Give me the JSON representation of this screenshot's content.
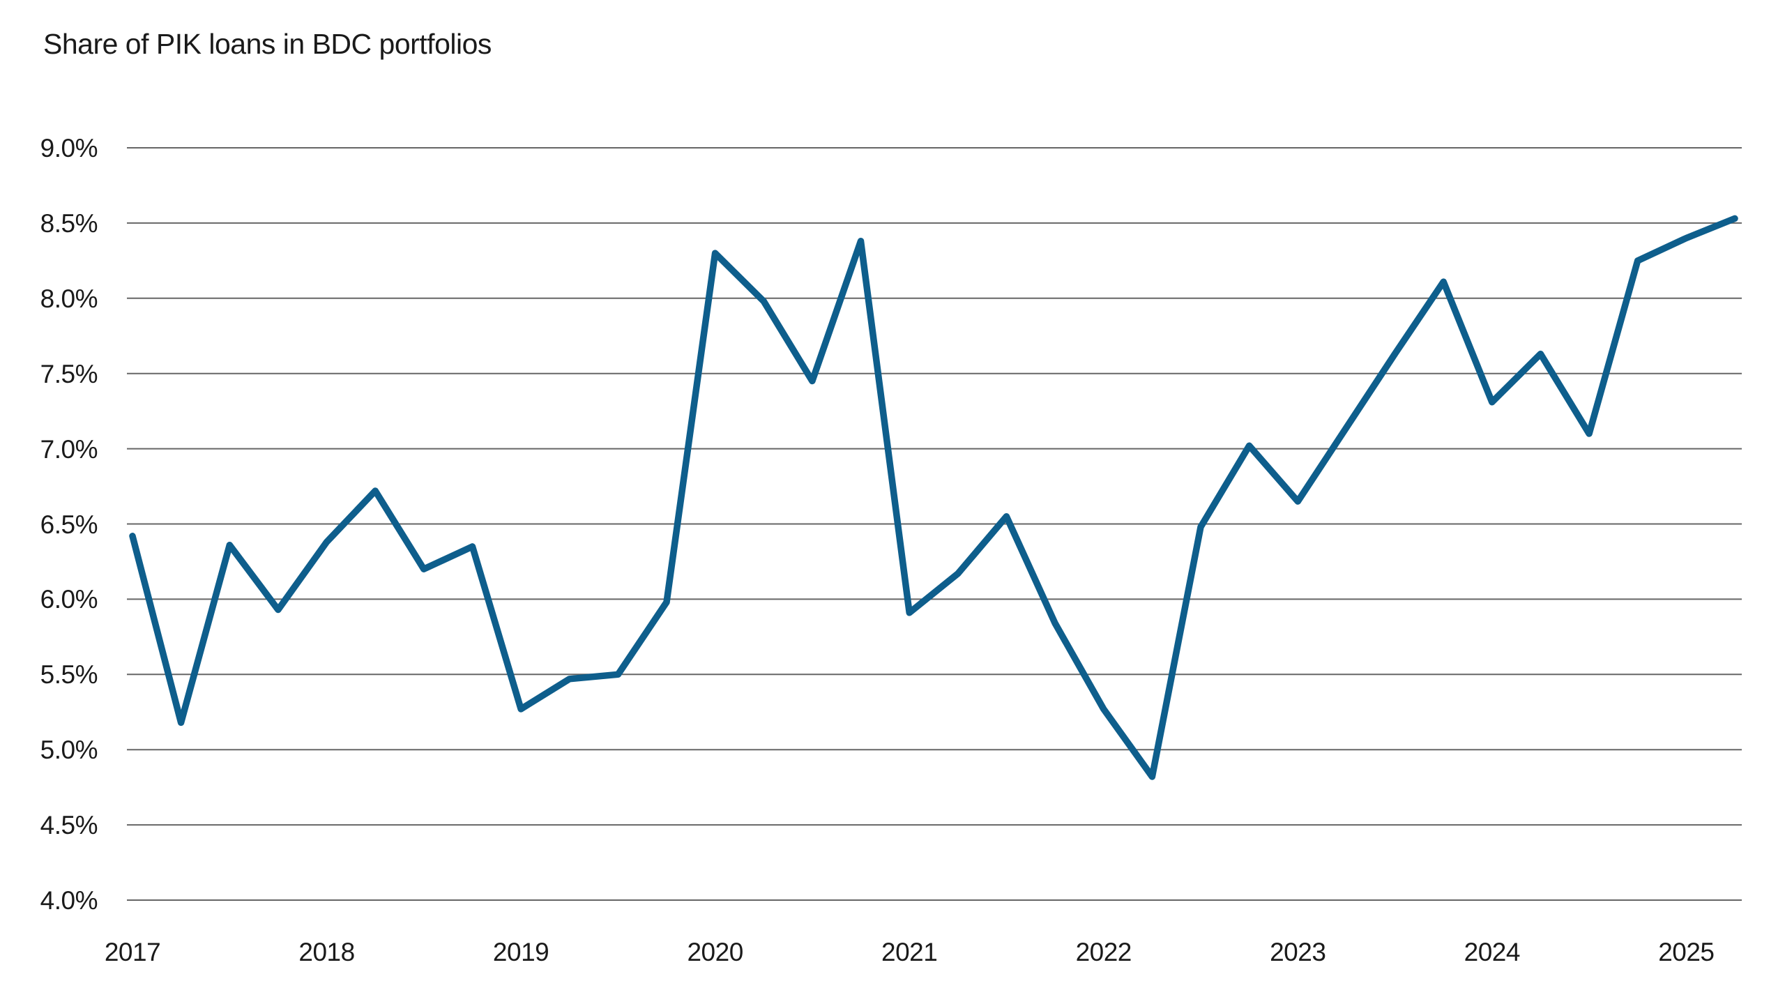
{
  "chart_data": {
    "type": "line",
    "title": "Share of PIK loans in BDC portfolios",
    "series_name": "Share of PIK loans in BDC portfolios",
    "x": [
      "2017 Q1",
      "2017 Q2",
      "2017 Q3",
      "2017 Q4",
      "2018 Q1",
      "2018 Q2",
      "2018 Q3",
      "2018 Q4",
      "2019 Q1",
      "2019 Q2",
      "2019 Q3",
      "2019 Q4",
      "2020 Q1",
      "2020 Q2",
      "2020 Q3",
      "2020 Q4",
      "2021 Q1",
      "2021 Q2",
      "2021 Q3",
      "2021 Q4",
      "2022 Q1",
      "2022 Q2",
      "2022 Q3",
      "2022 Q4",
      "2023 Q1",
      "2023 Q2",
      "2023 Q3",
      "2023 Q4",
      "2024 Q1",
      "2024 Q2",
      "2024 Q3",
      "2024 Q4",
      "2025 Q1",
      "2025 Q2"
    ],
    "values": [
      6.42,
      5.18,
      6.36,
      5.93,
      6.38,
      6.72,
      6.2,
      6.35,
      5.27,
      5.47,
      5.5,
      5.98,
      8.3,
      7.98,
      7.45,
      8.38,
      5.91,
      6.17,
      6.55,
      5.84,
      5.27,
      4.82,
      6.48,
      7.02,
      6.65,
      7.14,
      7.63,
      8.11,
      7.31,
      7.63,
      7.1,
      8.25,
      8.4,
      8.53
    ],
    "value_unit": "%",
    "xlabel": "",
    "ylabel": "",
    "x_tick_labels": [
      "2017",
      "2018",
      "2019",
      "2020",
      "2021",
      "2022",
      "2023",
      "2024",
      "2025"
    ],
    "x_ticks_every_n_points": 4,
    "ylim": [
      4.0,
      9.0
    ],
    "y_tick_step": 0.5,
    "y_tick_labels": [
      "9.0%",
      "8.5%",
      "8.0%",
      "7.5%",
      "7.0%",
      "6.5%",
      "6.0%",
      "5.5%",
      "5.0%",
      "4.5%",
      "4.0%"
    ],
    "grid": "horizontal",
    "legend_position": "none",
    "colors": {
      "line": "#0e5e8c",
      "gridline": "#666666",
      "text": "#1a1a1a",
      "background": "#ffffff"
    }
  }
}
